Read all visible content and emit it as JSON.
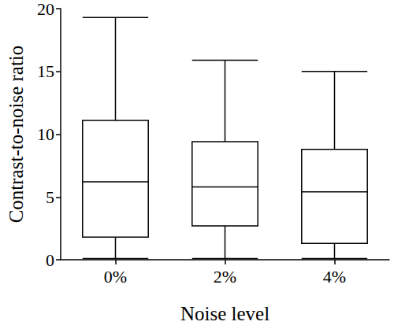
{
  "chart_data": {
    "type": "boxplot",
    "xlabel": "Noise level",
    "ylabel": "Contrast-to-noise ratio",
    "categories": [
      "0%",
      "2%",
      "4%"
    ],
    "values": [
      [
        0.1,
        1.8,
        6.2,
        11.1,
        19.3
      ],
      [
        0.1,
        2.7,
        5.8,
        9.4,
        15.9
      ],
      [
        0.1,
        1.3,
        5.4,
        8.8,
        15.0
      ]
    ],
    "color": "#000000",
    "ylim": [
      0,
      20
    ],
    "yticks": [
      0,
      5,
      10,
      15,
      20
    ],
    "grid": false
  }
}
